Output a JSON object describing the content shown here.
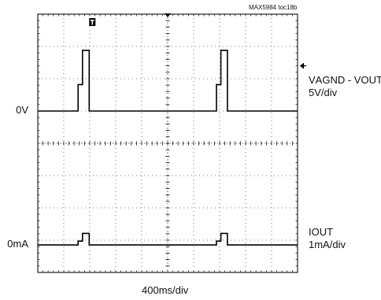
{
  "chart_data": {
    "type": "line",
    "figure_id": "MAX5984 toc18b",
    "timebase": "400ms/div",
    "divisions": {
      "x": 10,
      "y": 8
    },
    "trigger_marker": "T",
    "channels": [
      {
        "name": "VAGND - VOUT",
        "label_main": "V",
        "label_sub": "AGND",
        "label_sep": " - V",
        "label_sub2": "OUT",
        "scale": "5V/div",
        "reference_label": "0V",
        "reference_division": 5.0,
        "points_div": [
          [
            0,
            0
          ],
          [
            1.55,
            0
          ],
          [
            1.55,
            0.82
          ],
          [
            1.72,
            0.82
          ],
          [
            1.72,
            1.88
          ],
          [
            1.98,
            1.88
          ],
          [
            1.98,
            0
          ],
          [
            6.88,
            0
          ],
          [
            6.88,
            0.82
          ],
          [
            7.05,
            0.82
          ],
          [
            7.05,
            1.88
          ],
          [
            7.3,
            1.88
          ],
          [
            7.3,
            0
          ],
          [
            10,
            0
          ]
        ]
      },
      {
        "name": "IOUT",
        "label_main": "I",
        "label_sub": "OUT",
        "scale": "1mA/div",
        "reference_label": "0mA",
        "reference_division": 0.85,
        "points_div": [
          [
            0,
            0
          ],
          [
            1.55,
            0
          ],
          [
            1.55,
            0.12
          ],
          [
            1.72,
            0.12
          ],
          [
            1.72,
            0.36
          ],
          [
            1.98,
            0.36
          ],
          [
            1.98,
            0
          ],
          [
            6.88,
            0
          ],
          [
            6.88,
            0.12
          ],
          [
            7.05,
            0.12
          ],
          [
            7.05,
            0.36
          ],
          [
            7.3,
            0.36
          ],
          [
            7.3,
            0
          ],
          [
            10,
            0
          ]
        ]
      }
    ],
    "grid": true
  }
}
